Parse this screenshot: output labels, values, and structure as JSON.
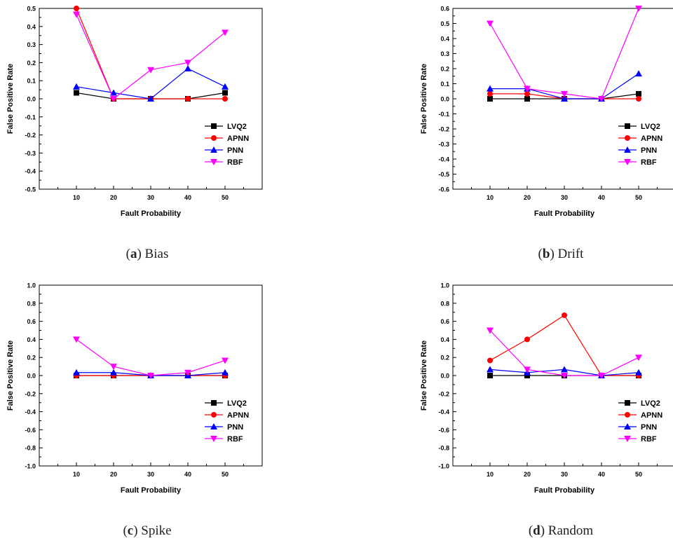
{
  "series_meta": [
    {
      "name": "LVQ2",
      "color": "#000000",
      "marker": "square"
    },
    {
      "name": "APNN",
      "color": "#ff0000",
      "marker": "circle"
    },
    {
      "name": "PNN",
      "color": "#0000ff",
      "marker": "triangle-up"
    },
    {
      "name": "RBF",
      "color": "#ff00ff",
      "marker": "triangle-down"
    }
  ],
  "captions": [
    {
      "letter": "a",
      "text": ") Bias"
    },
    {
      "letter": "b",
      "text": ") Drift"
    },
    {
      "letter": "c",
      "text": ") Spike"
    },
    {
      "letter": "d",
      "text": ") Random"
    }
  ],
  "chart_data": [
    {
      "type": "line",
      "xlabel": "Fault Probability",
      "ylabel": "False Positive Rate",
      "x": [
        10,
        20,
        30,
        40,
        50
      ],
      "xlim": [
        0,
        60
      ],
      "ylim": [
        -0.5,
        0.5
      ],
      "yticks": [
        -0.5,
        -0.4,
        -0.3,
        -0.2,
        -0.1,
        0.0,
        0.1,
        0.2,
        0.3,
        0.4,
        0.5
      ],
      "ytick_labels": [
        "-0.5",
        "-0.4",
        "-0.3",
        "-0.2",
        "-0.1",
        "0.0",
        "0.1",
        "0.2",
        "0.3",
        "0.4",
        "0.5"
      ],
      "xticks": [
        10,
        20,
        30,
        40,
        50
      ],
      "xtick_labels": [
        "10",
        "20",
        "30",
        "40",
        "50"
      ],
      "legend_position": "lower-right",
      "series": [
        {
          "name": "LVQ2",
          "values": [
            0.033,
            0.0,
            0.0,
            0.0,
            0.033
          ]
        },
        {
          "name": "APNN",
          "values": [
            0.5,
            0.0,
            0.0,
            0.0,
            0.0
          ]
        },
        {
          "name": "PNN",
          "values": [
            0.067,
            0.033,
            0.0,
            0.167,
            0.067
          ]
        },
        {
          "name": "RBF",
          "values": [
            0.467,
            0.0,
            0.16,
            0.2,
            0.367
          ]
        }
      ]
    },
    {
      "type": "line",
      "xlabel": "Fault Probability",
      "ylabel": "False Positive Rate",
      "x": [
        10,
        20,
        30,
        40,
        50
      ],
      "xlim": [
        0,
        60
      ],
      "ylim": [
        -0.6,
        0.6
      ],
      "yticks": [
        -0.6,
        -0.5,
        -0.4,
        -0.3,
        -0.2,
        -0.1,
        0.0,
        0.1,
        0.2,
        0.3,
        0.4,
        0.5,
        0.6
      ],
      "ytick_labels": [
        "-0.6",
        "-0.5",
        "-0.4",
        "-0.3",
        "-0.2",
        "-0.1",
        "0.0",
        "0.1",
        "0.2",
        "0.3",
        "0.4",
        "0.5",
        "0.6"
      ],
      "xticks": [
        10,
        20,
        30,
        40,
        50
      ],
      "xtick_labels": [
        "10",
        "20",
        "30",
        "40",
        "50"
      ],
      "legend_position": "lower-right",
      "series": [
        {
          "name": "LVQ2",
          "values": [
            0.0,
            0.0,
            0.0,
            0.0,
            0.033
          ]
        },
        {
          "name": "APNN",
          "values": [
            0.033,
            0.033,
            0.0,
            0.0,
            0.0
          ]
        },
        {
          "name": "PNN",
          "values": [
            0.067,
            0.067,
            0.0,
            0.0,
            0.167
          ]
        },
        {
          "name": "RBF",
          "values": [
            0.5,
            0.067,
            0.033,
            0.0,
            0.6
          ]
        }
      ]
    },
    {
      "type": "line",
      "xlabel": "Fault Probability",
      "ylabel": "False Positive Rate",
      "x": [
        10,
        20,
        30,
        40,
        50
      ],
      "xlim": [
        0,
        60
      ],
      "ylim": [
        -1.0,
        1.0
      ],
      "yticks": [
        -1.0,
        -0.8,
        -0.6,
        -0.4,
        -0.2,
        0.0,
        0.2,
        0.4,
        0.6,
        0.8,
        1.0
      ],
      "ytick_labels": [
        "-1.0",
        "-0.8",
        "-0.6",
        "-0.4",
        "-0.2",
        "0.0",
        "0.2",
        "0.4",
        "0.6",
        "0.8",
        "1.0"
      ],
      "xticks": [
        10,
        20,
        30,
        40,
        50
      ],
      "xtick_labels": [
        "10",
        "20",
        "30",
        "40",
        "50"
      ],
      "legend_position": "lower-right",
      "series": [
        {
          "name": "LVQ2",
          "values": [
            0.0,
            0.0,
            0.0,
            0.0,
            0.0
          ]
        },
        {
          "name": "APNN",
          "values": [
            0.0,
            0.0,
            0.0,
            0.0,
            0.0
          ]
        },
        {
          "name": "PNN",
          "values": [
            0.033,
            0.033,
            0.0,
            0.0,
            0.033
          ]
        },
        {
          "name": "RBF",
          "values": [
            0.4,
            0.1,
            0.0,
            0.033,
            0.167
          ]
        }
      ]
    },
    {
      "type": "line",
      "xlabel": "Fault Probability",
      "ylabel": "False Positive Rate",
      "x": [
        10,
        20,
        30,
        40,
        50
      ],
      "xlim": [
        0,
        60
      ],
      "ylim": [
        -1.0,
        1.0
      ],
      "yticks": [
        -1.0,
        -0.8,
        -0.6,
        -0.4,
        -0.2,
        0.0,
        0.2,
        0.4,
        0.6,
        0.8,
        1.0
      ],
      "ytick_labels": [
        "-1.0",
        "-0.8",
        "-0.6",
        "-0.4",
        "-0.2",
        "0.0",
        "0.2",
        "0.4",
        "0.6",
        "0.8",
        "1.0"
      ],
      "xticks": [
        10,
        20,
        30,
        40,
        50
      ],
      "xtick_labels": [
        "10",
        "20",
        "30",
        "40",
        "50"
      ],
      "legend_position": "lower-right",
      "series": [
        {
          "name": "LVQ2",
          "values": [
            0.0,
            0.0,
            0.0,
            0.0,
            0.0
          ]
        },
        {
          "name": "APNN",
          "values": [
            0.167,
            0.4,
            0.667,
            0.0,
            0.0
          ]
        },
        {
          "name": "PNN",
          "values": [
            0.067,
            0.033,
            0.067,
            0.0,
            0.033
          ]
        },
        {
          "name": "RBF",
          "values": [
            0.5,
            0.067,
            0.0,
            0.0,
            0.2
          ]
        }
      ]
    }
  ]
}
